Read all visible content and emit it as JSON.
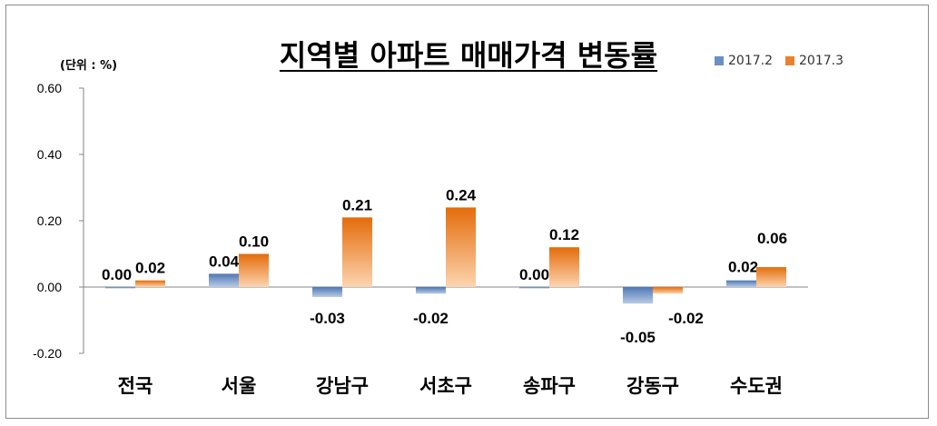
{
  "chart_data": {
    "type": "bar",
    "title": "지역별 아파트 매매가격 변동률",
    "unit_label": "(단위 : %)",
    "categories": [
      "전국",
      "서울",
      "강남구",
      "서초구",
      "송파구",
      "강동구",
      "수도권"
    ],
    "series": [
      {
        "name": "2017.2",
        "values": [
          0.0,
          0.04,
          -0.03,
          -0.02,
          0.0,
          -0.05,
          0.02
        ],
        "labels": [
          "0.00",
          "0.04",
          "-0.03",
          "-0.02",
          "0.00",
          "-0.05",
          "0.02"
        ],
        "color": "#6a8fc4"
      },
      {
        "name": "2017.3",
        "values": [
          0.02,
          0.1,
          0.21,
          0.24,
          0.12,
          -0.02,
          0.06
        ],
        "labels": [
          "0.02",
          "0.10",
          "0.21",
          "0.24",
          "0.12",
          "-0.02",
          "0.06"
        ],
        "color": "#e8822f"
      }
    ],
    "ylim": [
      -0.2,
      0.6
    ],
    "yticks": [
      "-0.20",
      "0.00",
      "0.20",
      "0.40",
      "0.60"
    ],
    "grid": false,
    "legend_position": "top-right"
  }
}
